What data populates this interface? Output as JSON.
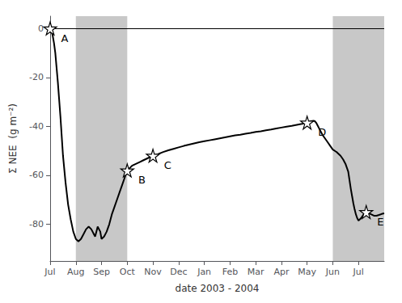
{
  "chart_data": {
    "type": "line",
    "xlabel": "date 2003 - 2004",
    "ylabel": "Σ NEE  (g m⁻²)",
    "color": "#000000",
    "grid": false,
    "xlim": [
      0,
      13
    ],
    "xticks": [
      {
        "value": 0,
        "label": "Jul"
      },
      {
        "value": 1,
        "label": "Aug"
      },
      {
        "value": 2,
        "label": "Sep"
      },
      {
        "value": 3,
        "label": "Oct"
      },
      {
        "value": 4,
        "label": "Nov"
      },
      {
        "value": 5,
        "label": "Dec"
      },
      {
        "value": 6,
        "label": "Jan"
      },
      {
        "value": 7,
        "label": "Feb"
      },
      {
        "value": 8,
        "label": "Mar"
      },
      {
        "value": 9,
        "label": "Apr"
      },
      {
        "value": 10,
        "label": "May"
      },
      {
        "value": 11,
        "label": "Jun"
      },
      {
        "value": 12,
        "label": "Jul"
      }
    ],
    "ylim": [
      -95,
      5
    ],
    "yticks": [
      0,
      -20,
      -40,
      -60,
      -80
    ],
    "x": [
      0.0,
      0.05,
      0.1,
      0.15,
      0.2,
      0.25,
      0.3,
      0.35,
      0.4,
      0.45,
      0.5,
      0.6,
      0.7,
      0.8,
      0.9,
      1.0,
      1.1,
      1.2,
      1.3,
      1.4,
      1.5,
      1.6,
      1.65,
      1.7,
      1.75,
      1.8,
      1.85,
      1.9,
      1.95,
      2.0,
      2.1,
      2.2,
      2.3,
      2.4,
      2.5,
      2.6,
      2.7,
      2.8,
      2.9,
      3.0,
      3.1,
      3.2,
      3.3,
      3.4,
      3.5,
      3.6,
      3.7,
      3.8,
      3.9,
      4.0,
      4.2,
      4.4,
      4.6,
      4.8,
      5.0,
      5.2,
      5.4,
      5.6,
      5.8,
      6.0,
      6.2,
      6.4,
      6.6,
      6.8,
      7.0,
      7.2,
      7.4,
      7.6,
      7.8,
      8.0,
      8.2,
      8.4,
      8.6,
      8.8,
      9.0,
      9.2,
      9.4,
      9.6,
      9.8,
      10.0,
      10.05,
      10.1,
      10.15,
      10.2,
      10.25,
      10.3,
      10.35,
      10.4,
      10.5,
      10.6,
      10.7,
      10.8,
      10.9,
      11.0,
      11.05,
      11.1,
      11.15,
      11.2,
      11.3,
      11.4,
      11.5,
      11.6,
      11.65,
      11.7,
      11.75,
      11.8,
      11.85,
      11.9,
      11.95,
      12.0,
      12.1,
      12.2,
      12.3,
      12.4,
      12.5,
      12.6,
      12.7,
      12.8,
      12.9,
      13.0
    ],
    "values": [
      0,
      -1,
      -3,
      -6,
      -10,
      -16,
      -22,
      -29,
      -36,
      -44,
      -52,
      -63,
      -72,
      -78,
      -83,
      -86,
      -87,
      -86,
      -84,
      -82,
      -81,
      -82,
      -83,
      -84,
      -85,
      -83,
      -81,
      -82,
      -83,
      -86,
      -85,
      -83,
      -80,
      -76,
      -73,
      -70,
      -67,
      -64,
      -61,
      -58,
      -57,
      -56,
      -55.5,
      -55,
      -54.5,
      -54,
      -53.5,
      -53,
      -52.5,
      -52,
      -51.3,
      -50.5,
      -49.8,
      -49.2,
      -48.6,
      -48.0,
      -47.5,
      -47.0,
      -46.5,
      -46.1,
      -45.7,
      -45.3,
      -44.9,
      -44.5,
      -44.1,
      -43.7,
      -43.4,
      -43.0,
      -42.7,
      -42.3,
      -42.0,
      -41.6,
      -41.3,
      -40.9,
      -40.5,
      -40.1,
      -39.8,
      -39.4,
      -39.0,
      -38.5,
      -38.3,
      -38.1,
      -37.9,
      -37.8,
      -37.7,
      -37.9,
      -38.5,
      -39.5,
      -41.5,
      -43.5,
      -45.0,
      -46.5,
      -48.0,
      -49.5,
      -49.8,
      -50.2,
      -50.5,
      -51.0,
      -52.0,
      -53.5,
      -55.5,
      -58.5,
      -62.0,
      -65.5,
      -68.5,
      -71.5,
      -74.0,
      -76.0,
      -77.5,
      -78.5,
      -77.5,
      -76.0,
      -75.0,
      -75.5,
      -76.0,
      -76.5,
      -76.5,
      -76.2,
      -75.8,
      -75.5
    ],
    "shaded_regions": [
      {
        "x0": 1,
        "x1": 3,
        "color": "#c8c8c8"
      },
      {
        "x0": 11,
        "x1": 13,
        "color": "#c8c8c8"
      }
    ],
    "hlines": [
      {
        "y": 0,
        "color": "#000000"
      }
    ],
    "annotations": [
      {
        "text": "A",
        "x": 0.0,
        "y": 0,
        "marker": "star"
      },
      {
        "text": "B",
        "x": 3.0,
        "y": -58,
        "marker": "star"
      },
      {
        "text": "C",
        "x": 4.0,
        "y": -52,
        "marker": "star"
      },
      {
        "text": "D",
        "x": 10.0,
        "y": -38.5,
        "marker": "star"
      },
      {
        "text": "E",
        "x": 12.3,
        "y": -75,
        "marker": "star"
      }
    ]
  }
}
